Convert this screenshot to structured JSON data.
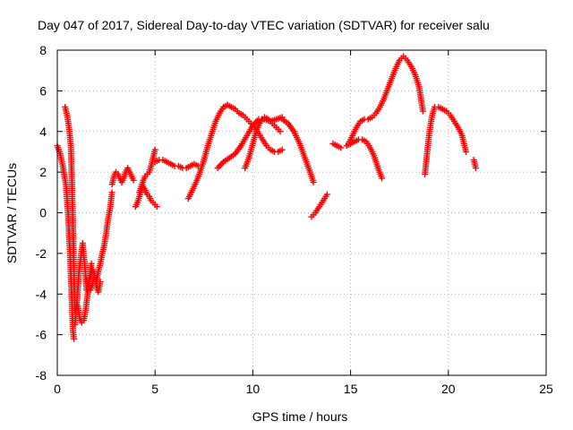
{
  "chart_data": {
    "type": "scatter",
    "title": "Day 047 of 2017, Sidereal Day-to-day VTEC variation (SDTVAR) for receiver salu",
    "xlabel": "GPS time / hours",
    "ylabel": "SDTVAR / TECUs",
    "xlim": [
      0,
      25
    ],
    "ylim": [
      -8,
      8
    ],
    "x_ticks": [
      "0",
      "5",
      "10",
      "15",
      "20",
      "25"
    ],
    "y_ticks": [
      "-8",
      "-6",
      "-4",
      "-2",
      "0",
      "2",
      "4",
      "6",
      "8"
    ],
    "grid": true,
    "marker": "plus",
    "color": "#ff0000",
    "series": [
      {
        "x": [
          0.0,
          0.15,
          0.3,
          0.45,
          0.55,
          0.65,
          0.75,
          0.8,
          0.85
        ],
        "y": [
          3.3,
          2.9,
          2.2,
          1.3,
          0.0,
          -2.0,
          -4.5,
          -5.8,
          -6.2
        ]
      },
      {
        "x": [
          0.4,
          0.5,
          0.6,
          0.7,
          0.75,
          0.8,
          0.85,
          0.9
        ],
        "y": [
          5.2,
          4.8,
          4.2,
          3.2,
          1.5,
          -0.5,
          -2.8,
          -4.8
        ]
      },
      {
        "x": [
          0.9,
          1.0,
          1.1,
          1.2,
          1.3,
          1.4,
          1.5
        ],
        "y": [
          -5.5,
          -4.5,
          -3.0,
          -2.2,
          -1.5,
          -2.5,
          -3.8
        ]
      },
      {
        "x": [
          1.05,
          1.15,
          1.25,
          1.35,
          1.45,
          1.55,
          1.65,
          1.75
        ],
        "y": [
          -4.6,
          -5.2,
          -5.4,
          -5.3,
          -4.8,
          -4.0,
          -3.2,
          -2.5
        ]
      },
      {
        "x": [
          1.5,
          1.6,
          1.7,
          1.8,
          1.9,
          2.0,
          2.1,
          2.2
        ],
        "y": [
          -3.3,
          -3.6,
          -3.8,
          -3.5,
          -3.0,
          -3.6,
          -3.9,
          -3.4
        ]
      },
      {
        "x": [
          1.7,
          1.8,
          1.9,
          2.0,
          2.1,
          2.2,
          2.3,
          2.4,
          2.5,
          2.6,
          2.7,
          2.8
        ],
        "y": [
          -3.2,
          -2.8,
          -3.0,
          -3.4,
          -2.9,
          -2.5,
          -2.0,
          -1.6,
          -1.0,
          -0.3,
          0.2,
          1.0
        ]
      },
      {
        "x": [
          2.8,
          2.9,
          3.0,
          3.1,
          3.2,
          3.3,
          3.4,
          3.5,
          3.6,
          3.7,
          3.8,
          3.9
        ],
        "y": [
          1.4,
          1.8,
          2.0,
          1.9,
          1.7,
          1.5,
          1.7,
          2.0,
          2.2,
          2.0,
          1.8,
          1.6
        ]
      },
      {
        "x": [
          4.0,
          4.1,
          4.2,
          4.3,
          4.4,
          4.5,
          4.6,
          4.7,
          4.8,
          4.9,
          5.0,
          5.1
        ],
        "y": [
          0.3,
          0.5,
          0.8,
          1.1,
          1.3,
          1.1,
          0.9,
          0.8,
          0.6,
          0.5,
          0.4,
          0.3
        ]
      },
      {
        "x": [
          4.2,
          4.3,
          4.4,
          4.5,
          4.6,
          4.7,
          4.8,
          4.9,
          5.0
        ],
        "y": [
          1.0,
          1.3,
          1.6,
          1.8,
          1.9,
          2.0,
          2.3,
          2.7,
          3.1
        ]
      },
      {
        "x": [
          5.0,
          5.2,
          5.4,
          5.6,
          5.8,
          6.0,
          6.2,
          6.4,
          6.6,
          6.8,
          7.0,
          7.2
        ],
        "y": [
          2.5,
          2.6,
          2.6,
          2.5,
          2.4,
          2.3,
          2.3,
          2.2,
          2.2,
          2.3,
          2.4,
          2.3
        ]
      },
      {
        "x": [
          6.7,
          6.9,
          7.1,
          7.3,
          7.5,
          7.7,
          7.9,
          8.1,
          8.3,
          8.5,
          8.7
        ],
        "y": [
          0.7,
          1.1,
          1.5,
          2.0,
          2.6,
          3.3,
          3.9,
          4.5,
          4.9,
          5.2,
          5.3
        ]
      },
      {
        "x": [
          8.7,
          8.9,
          9.1,
          9.3,
          9.5,
          9.7,
          9.9,
          10.1,
          10.3,
          10.5,
          10.7,
          10.9,
          11.1,
          11.3,
          11.5
        ],
        "y": [
          5.3,
          5.2,
          5.1,
          4.9,
          4.8,
          4.6,
          4.4,
          4.2,
          3.9,
          3.6,
          3.3,
          3.1,
          3.0,
          3.0,
          3.1
        ]
      },
      {
        "x": [
          8.2,
          8.5,
          8.8,
          9.1,
          9.4,
          9.7,
          10.0,
          10.3,
          10.6,
          10.9,
          11.2,
          11.5
        ],
        "y": [
          2.2,
          2.5,
          2.7,
          2.9,
          3.3,
          3.8,
          4.3,
          4.6,
          4.6,
          4.5,
          4.6,
          4.7
        ]
      },
      {
        "x": [
          9.6,
          9.8,
          10.0,
          10.2,
          10.4,
          10.6,
          10.8,
          11.0,
          11.2,
          11.4
        ],
        "y": [
          2.2,
          2.7,
          3.4,
          4.1,
          4.5,
          4.7,
          4.6,
          4.4,
          4.2,
          4.0
        ]
      },
      {
        "x": [
          11.5,
          11.8,
          12.1,
          12.4,
          12.7,
          13.0,
          13.1
        ],
        "y": [
          4.6,
          4.4,
          4.0,
          3.4,
          2.6,
          1.8,
          1.5
        ]
      },
      {
        "x": [
          13.0,
          13.2,
          13.4,
          13.6,
          13.8
        ],
        "y": [
          -0.2,
          0.0,
          0.3,
          0.6,
          0.9
        ]
      },
      {
        "x": [
          14.1,
          14.3,
          14.5
        ],
        "y": [
          3.4,
          3.3,
          3.2
        ]
      },
      {
        "x": [
          14.9,
          15.1,
          15.3,
          15.5,
          15.7,
          15.9,
          16.1,
          16.3,
          16.5,
          16.7,
          16.9,
          17.1,
          17.3,
          17.5,
          17.7,
          17.9,
          18.1,
          18.3,
          18.5,
          18.7
        ],
        "y": [
          3.4,
          3.8,
          4.2,
          4.5,
          4.6,
          4.6,
          4.7,
          4.9,
          5.2,
          5.6,
          6.1,
          6.6,
          7.1,
          7.5,
          7.7,
          7.5,
          7.2,
          6.8,
          6.2,
          5.0
        ]
      },
      {
        "x": [
          14.8,
          15.0,
          15.2,
          15.4,
          15.6,
          15.8,
          16.0,
          16.2,
          16.4,
          16.6
        ],
        "y": [
          3.3,
          3.4,
          3.5,
          3.6,
          3.6,
          3.5,
          3.2,
          2.8,
          2.2,
          1.7
        ]
      },
      {
        "x": [
          18.8,
          18.9,
          19.0,
          19.1,
          19.2,
          19.3,
          19.5,
          19.7,
          19.9,
          20.1,
          20.3,
          20.5,
          20.7,
          20.9
        ],
        "y": [
          1.9,
          2.8,
          3.7,
          4.4,
          4.9,
          5.2,
          5.2,
          5.1,
          5.0,
          4.8,
          4.5,
          4.2,
          3.8,
          3.0
        ]
      },
      {
        "x": [
          21.3,
          21.4
        ],
        "y": [
          2.6,
          2.2
        ]
      }
    ]
  }
}
